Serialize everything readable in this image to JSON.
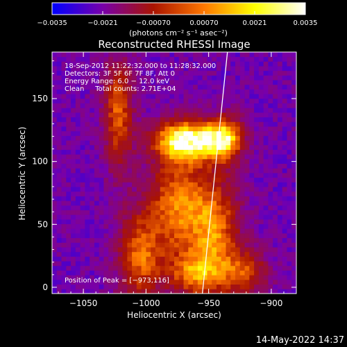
{
  "chart_data": {
    "type": "heatmap",
    "title": "Reconstructed RHESSI Image",
    "xlabel": "Heliocentric X (arcsec)",
    "ylabel": "Heliocentric Y (arcsec)",
    "xlim": [
      -1075,
      -880
    ],
    "ylim": [
      -5,
      187
    ],
    "x_ticks": [
      -1050,
      -1000,
      -950,
      -900
    ],
    "x_tick_labels": [
      "−1050",
      "−1000",
      "−950",
      "−900"
    ],
    "y_ticks": [
      0,
      50,
      100,
      150
    ],
    "y_tick_labels": [
      "0",
      "50",
      "100",
      "150"
    ],
    "grid": false,
    "colorbar": {
      "min": -0.0035,
      "max": 0.0035,
      "ticks": [
        -0.0035,
        -0.0021,
        -0.0007,
        0.0007,
        0.0021,
        0.0035
      ],
      "tick_labels": [
        "−0.0035",
        "−0.0021",
        "−0.00070",
        "0.00070",
        "0.0021",
        "0.0035"
      ],
      "units_label": "(photons cm⁻² s⁻¹ asec⁻²)",
      "colors": [
        "#0000ff",
        "#7800aa",
        "#aa1400",
        "#ff7800",
        "#ffff00",
        "#ffffff"
      ]
    },
    "annotations": [
      "18-Sep-2012 11:22:32.000 to 11:28:32.000",
      "Detectors: 3F 5F 6F 7F 8F, Att 0",
      "Energy Range: 6.0 − 12.0 keV",
      "Clean     Total counts: 2.71E+04"
    ],
    "peak_text": "Position of Peak = [−973,116]",
    "peak": {
      "x": -973,
      "y": 116
    },
    "limb_line": [
      {
        "x": -955,
        "y": -5
      },
      {
        "x": -935,
        "y": 187
      }
    ],
    "sources": [
      {
        "x": -967,
        "y": 117,
        "sx": 18,
        "sy": 11,
        "amp": 1.0
      },
      {
        "x": -937,
        "y": 118,
        "sx": 10,
        "sy": 12,
        "amp": 0.75
      },
      {
        "x": -1022,
        "y": 138,
        "sx": 8,
        "sy": 30,
        "amp": 0.55
      },
      {
        "x": -975,
        "y": 65,
        "sx": 16,
        "sy": 30,
        "amp": 0.6
      },
      {
        "x": -945,
        "y": 45,
        "sx": 14,
        "sy": 30,
        "amp": 0.6
      },
      {
        "x": -1005,
        "y": 25,
        "sx": 12,
        "sy": 25,
        "amp": 0.55
      },
      {
        "x": -920,
        "y": 12,
        "sx": 12,
        "sy": 12,
        "amp": 0.45
      },
      {
        "x": -960,
        "y": 10,
        "sx": 16,
        "sy": 12,
        "amp": 0.5
      }
    ]
  },
  "footer": {
    "timestamp": "14-May-2022 14:37"
  }
}
